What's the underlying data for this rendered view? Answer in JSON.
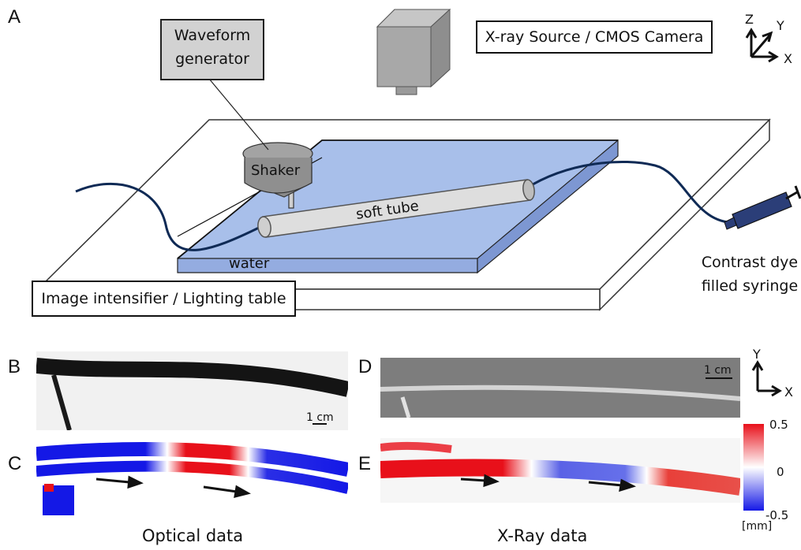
{
  "panels": {
    "A": "A",
    "B": "B",
    "C": "C",
    "D": "D",
    "E": "E"
  },
  "setup": {
    "waveform_generator": [
      "Waveform",
      "generator"
    ],
    "xray_source": "X-ray Source / CMOS Camera",
    "shaker": "Shaker",
    "soft_tube": "soft tube",
    "water": "water",
    "image_intensifier": "Image intensifier / Lighting table",
    "syringe": [
      "Contrast dye",
      "filled syringe"
    ]
  },
  "axes_3d": {
    "z": "Z",
    "y": "Y",
    "x": "X"
  },
  "axes_2d": {
    "y": "Y",
    "x": "X"
  },
  "scale_bar": "1 cm",
  "colorbar": {
    "max": "0.5",
    "mid": "0",
    "min": "-0.5",
    "unit": "[mm]"
  },
  "captions": {
    "optical": "Optical data",
    "xray": "X-Ray data"
  },
  "colors": {
    "red": "#e8101a",
    "blue": "#1418e6",
    "water": "#9db5e6",
    "tube": "#d9d9d9",
    "wire": "#0f2a55"
  }
}
